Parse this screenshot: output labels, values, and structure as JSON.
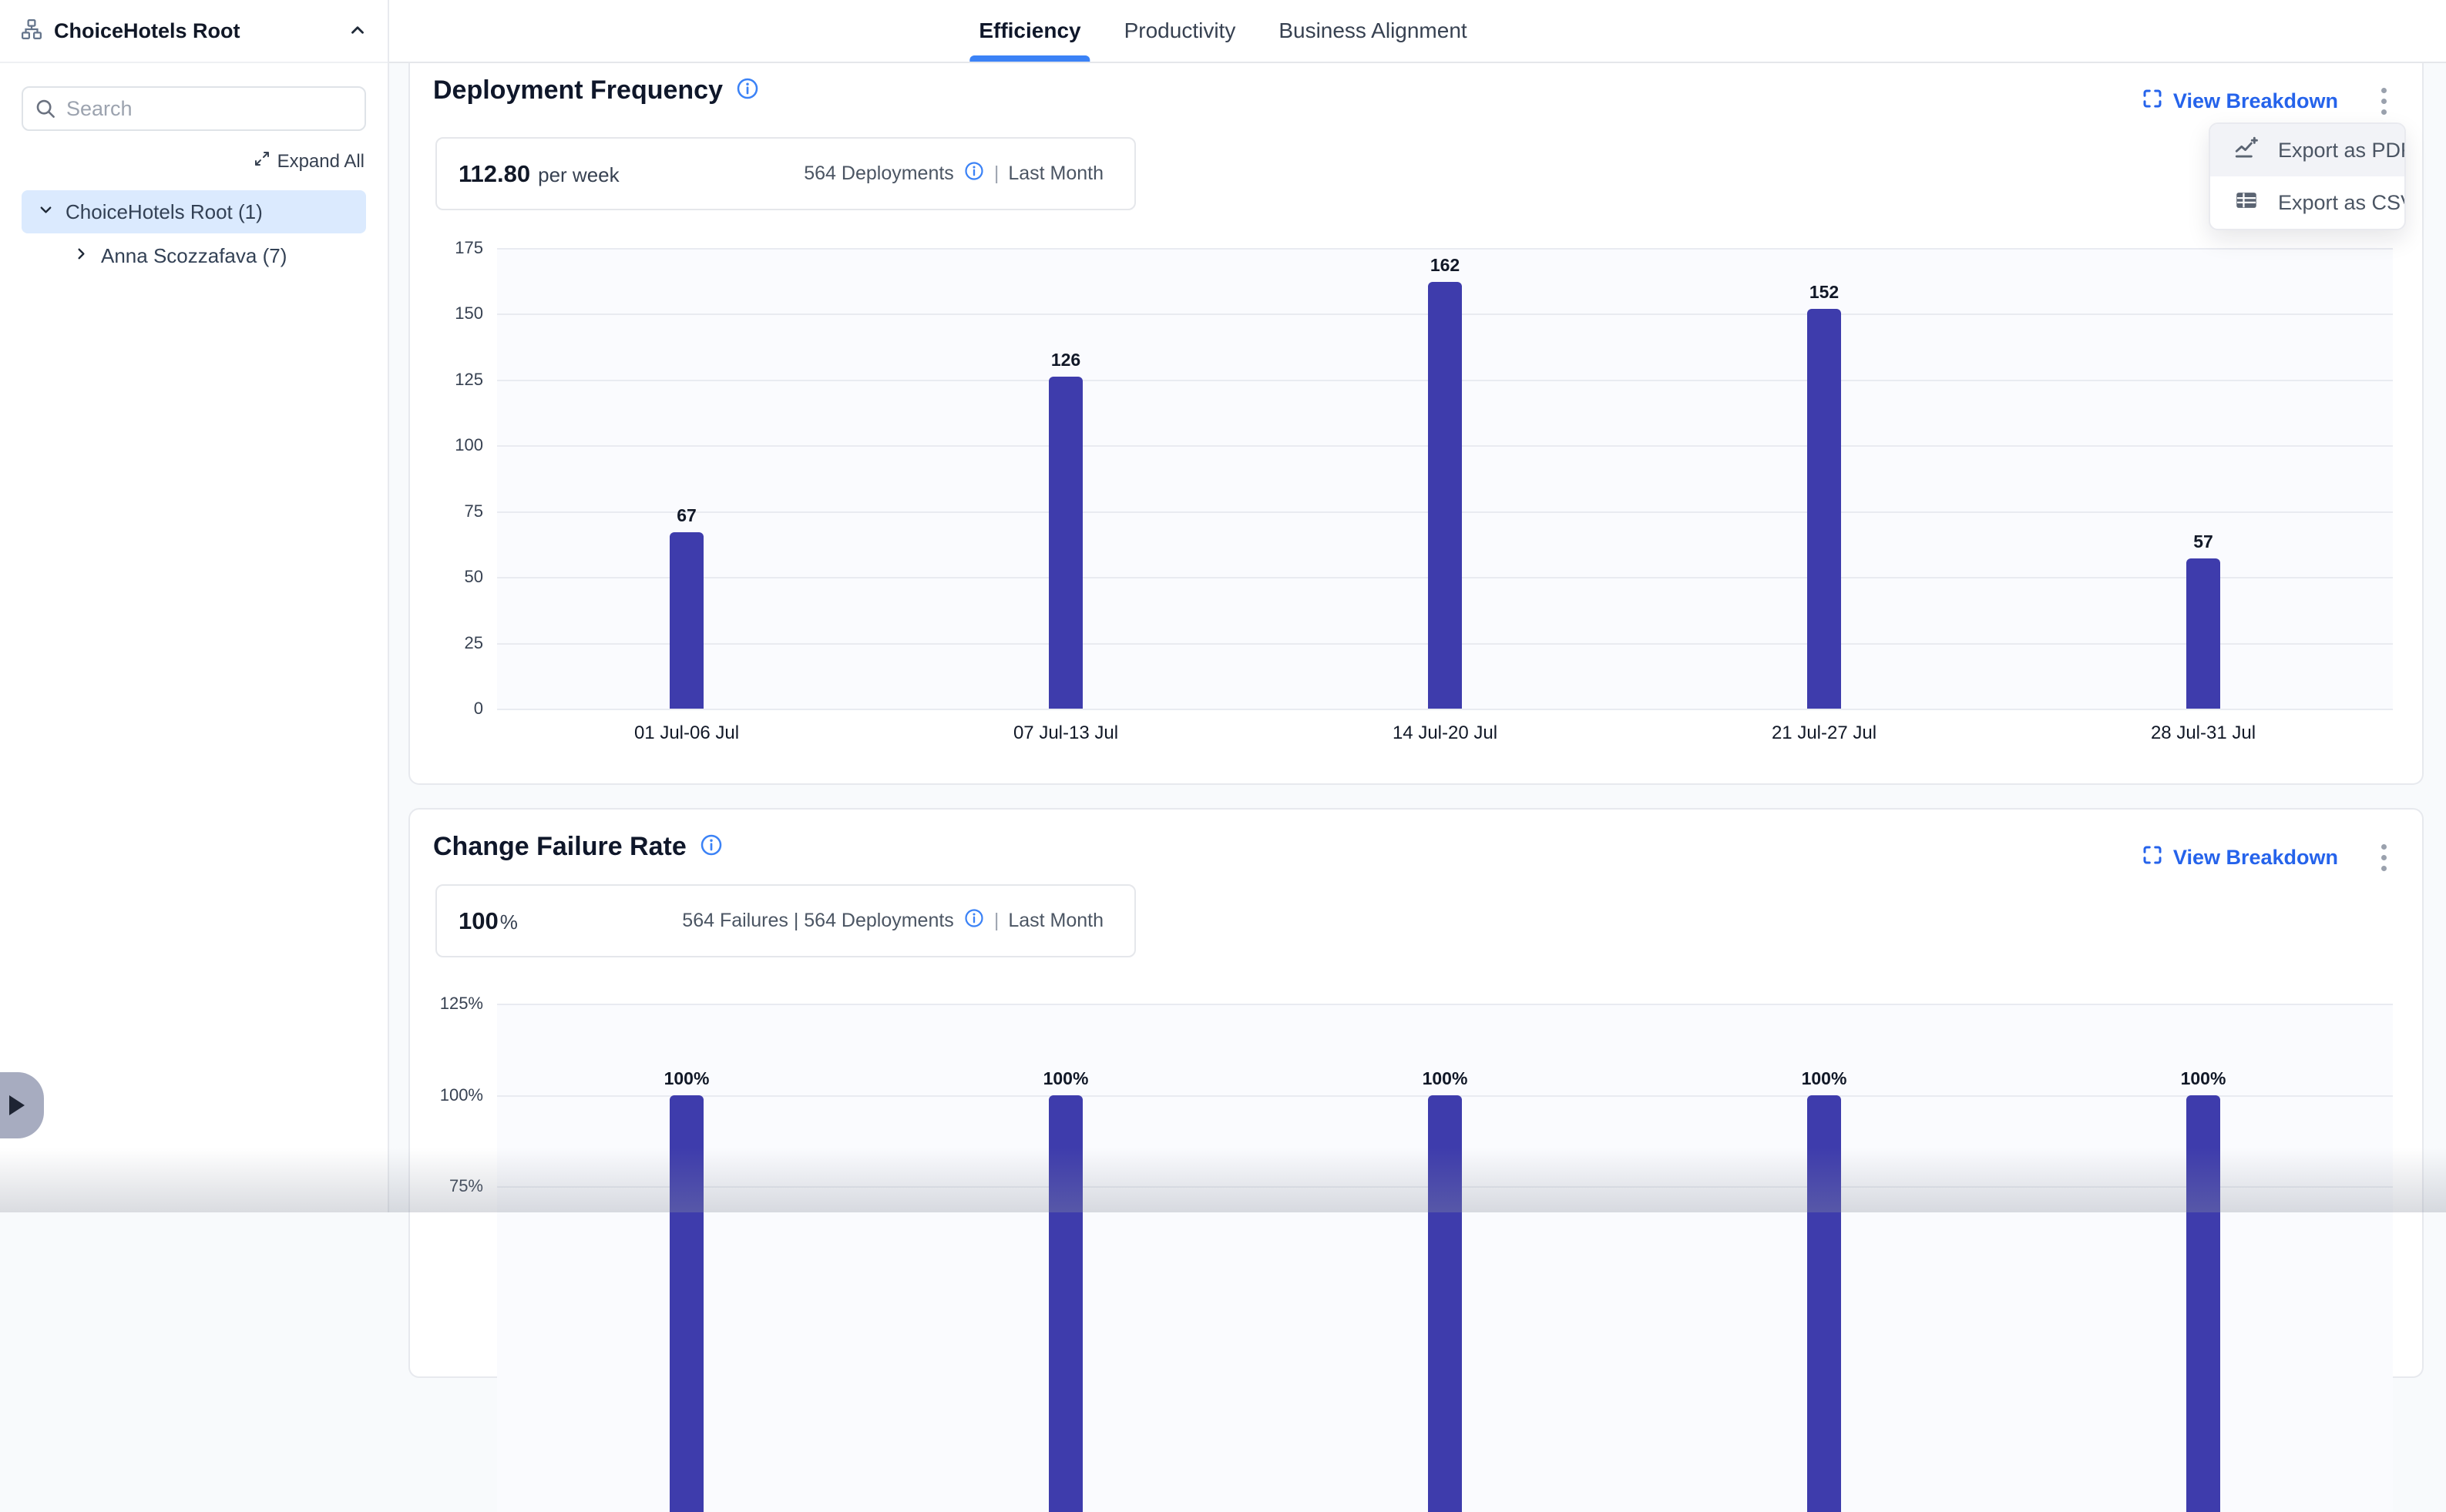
{
  "sidebar": {
    "title": "ChoiceHotels Root",
    "search_placeholder": "Search",
    "expand_all": "Expand All",
    "tree": [
      {
        "label": "ChoiceHotels Root (1)",
        "state": "expanded",
        "selected": true
      },
      {
        "label": "Anna Scozzafava (7)",
        "state": "collapsed",
        "selected": false
      }
    ]
  },
  "tabs": [
    {
      "label": "Efficiency",
      "active": true
    },
    {
      "label": "Productivity",
      "active": false
    },
    {
      "label": "Business Alignment",
      "active": false
    }
  ],
  "cards": [
    {
      "title": "Deployment Frequency",
      "stat_value": "112.80",
      "stat_unit": "per week",
      "meta_left": "564 Deployments",
      "meta_divider": "|",
      "meta_period": "Last Month",
      "view_breakdown": "View Breakdown"
    },
    {
      "title": "Change Failure Rate",
      "stat_value": "100",
      "stat_unit": "%",
      "meta_left": "564 Failures | 564 Deployments",
      "meta_divider": "|",
      "meta_period": "Last Month",
      "view_breakdown": "View Breakdown"
    }
  ],
  "menu": {
    "items": [
      {
        "label": "Export as PDF",
        "icon": "chart-line-plus-icon",
        "highlighted": true
      },
      {
        "label": "Export as CSV",
        "icon": "table-icon",
        "highlighted": false
      }
    ]
  },
  "chart_data": [
    {
      "type": "bar",
      "title": "Deployment Frequency",
      "categories": [
        "01 Jul-06 Jul",
        "07 Jul-13 Jul",
        "14 Jul-20 Jul",
        "21 Jul-27 Jul",
        "28 Jul-31 Jul"
      ],
      "values": [
        67,
        126,
        162,
        152,
        57
      ],
      "bar_labels": [
        "67",
        "126",
        "162",
        "152",
        "57"
      ],
      "yticks": [
        {
          "value": 175,
          "label": "175"
        },
        {
          "value": 150,
          "label": "150"
        },
        {
          "value": 125,
          "label": "125"
        },
        {
          "value": 100,
          "label": "100"
        },
        {
          "value": 75,
          "label": "75"
        },
        {
          "value": 50,
          "label": "50"
        },
        {
          "value": 25,
          "label": "25"
        },
        {
          "value": 0,
          "label": "0"
        }
      ],
      "ylim": [
        0,
        175
      ],
      "grid": true,
      "legend": false,
      "bar_color": "#3e3cac"
    },
    {
      "type": "bar",
      "title": "Change Failure Rate",
      "values": [
        100,
        100,
        100,
        100,
        100
      ],
      "bar_labels": [
        "100%",
        "100%",
        "100%",
        "100%",
        "100%"
      ],
      "yticks": [
        {
          "value": 125,
          "label": "125%"
        },
        {
          "value": 100,
          "label": "100%"
        },
        {
          "value": 75,
          "label": "75%"
        }
      ],
      "ylim": [
        0,
        125
      ],
      "grid": true,
      "legend": false,
      "bar_color": "#3e3cac"
    }
  ],
  "colors": {
    "accent_blue": "#2563eb",
    "tab_underline": "#3b82f6",
    "bar": "#3e3cac",
    "selected_row_bg": "#dbeafe",
    "info_icon": "#3b82f6"
  }
}
